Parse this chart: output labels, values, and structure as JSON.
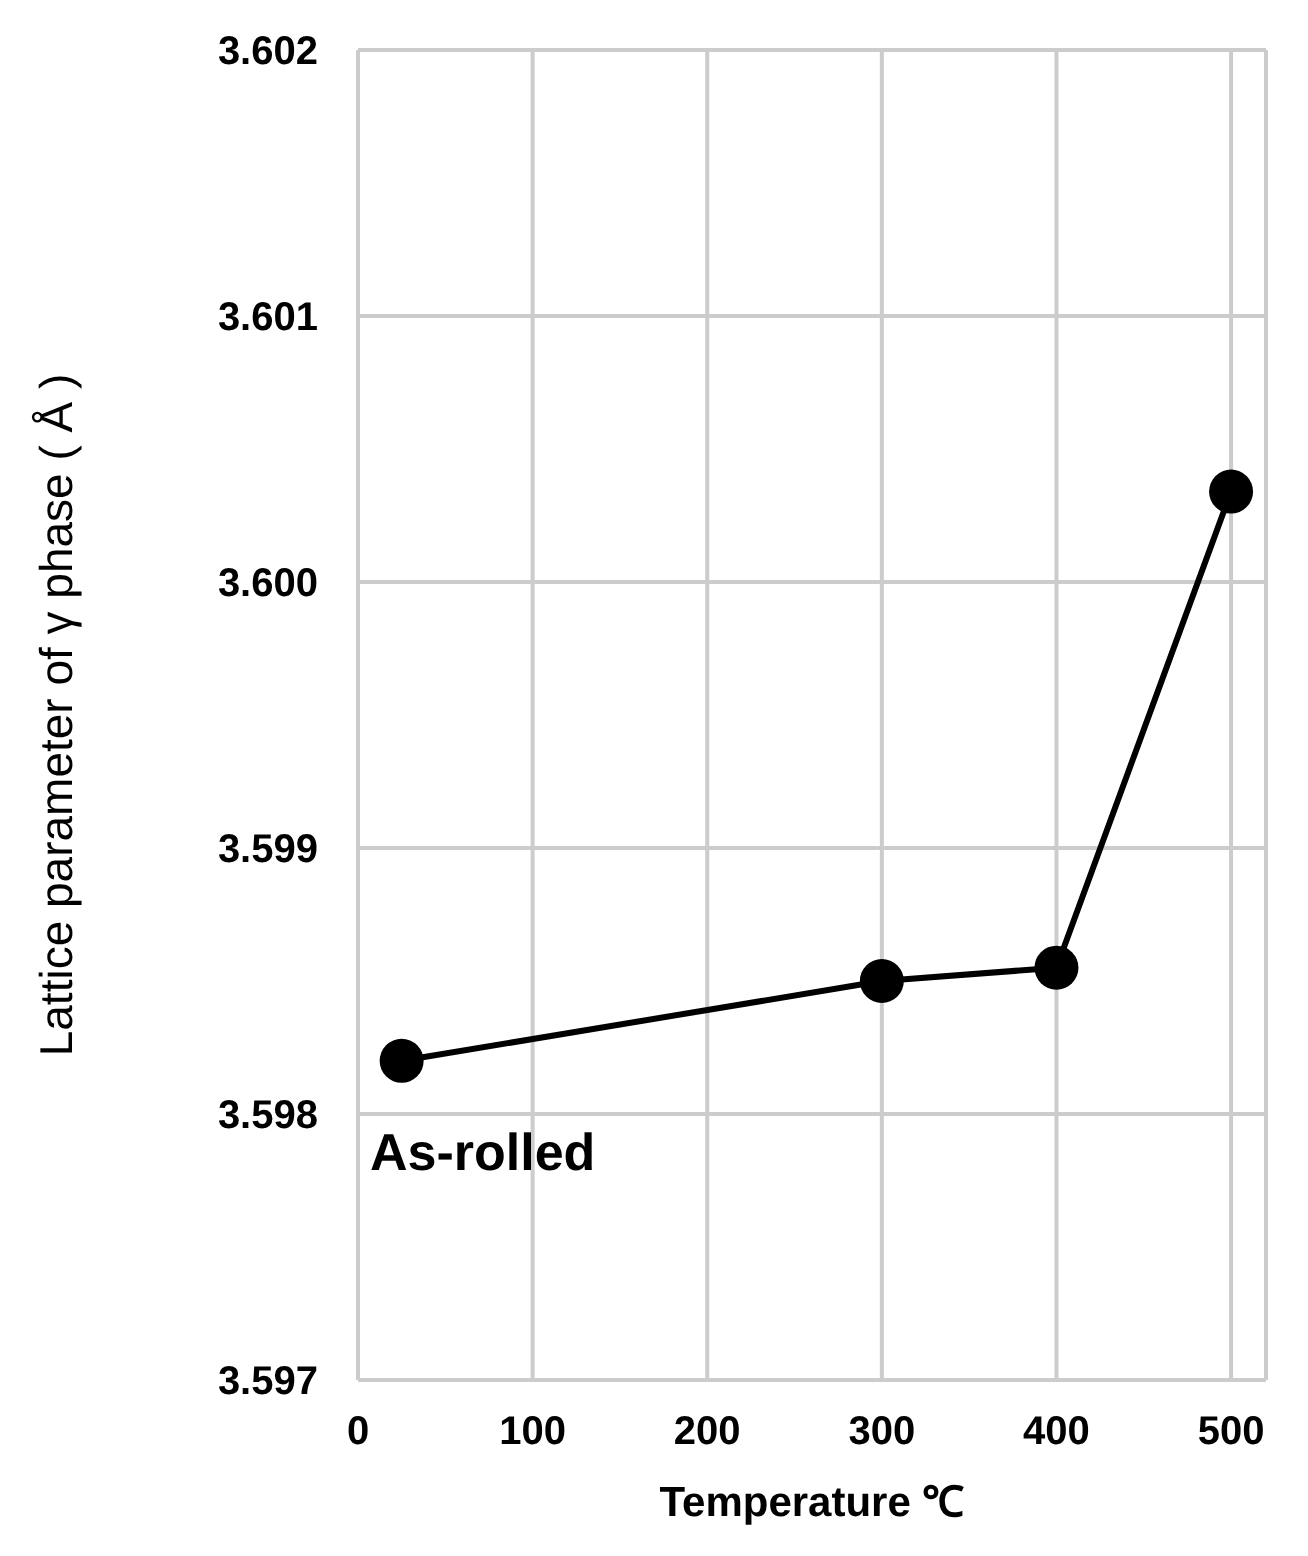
{
  "chart_data": {
    "type": "line",
    "xlabel": "Temperature ℃",
    "ylabel": "Lattice parameter of γ phase ( Å )",
    "x": [
      25,
      300,
      400,
      500
    ],
    "series": [
      {
        "color": "#000000",
        "values": [
          3.5982,
          3.5985,
          3.59855,
          3.60034
        ]
      }
    ],
    "xlim": [
      0,
      520
    ],
    "xticks": [
      0,
      100,
      200,
      300,
      400,
      500
    ],
    "ylim": [
      3.597,
      3.602
    ],
    "yticks": [
      3.597,
      3.598,
      3.599,
      {
        "value": 3.6,
        "label": "3.600"
      },
      3.601,
      3.602
    ],
    "grid": true,
    "marker": "circle",
    "line_style": "solid",
    "legend": false,
    "annotations": [
      "As-rolled"
    ]
  }
}
